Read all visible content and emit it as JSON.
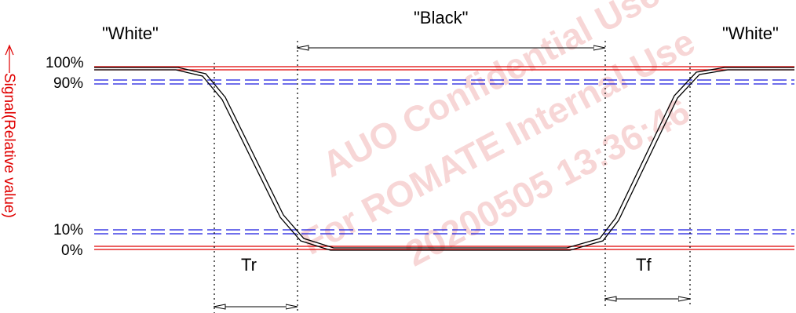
{
  "diagram": {
    "labels": {
      "white_left": "\"White\"",
      "black": "\"Black\"",
      "white_right": "\"White\"",
      "rise_time": "Tr",
      "fall_time": "Tf"
    },
    "y_axis": {
      "label": "Signal(Relative value)",
      "ticks": [
        "100%",
        "90%",
        "10%",
        "0%"
      ]
    },
    "colors": {
      "reference_100_0": "#e00000",
      "reference_90_10": "#1a1adf",
      "waveform": "#000000",
      "axis_label": "#e00000"
    },
    "watermark": {
      "lines": [
        "AUO Confidential Use",
        "For ROMATE Internal Use",
        "20200505 13:36:46"
      ]
    }
  }
}
